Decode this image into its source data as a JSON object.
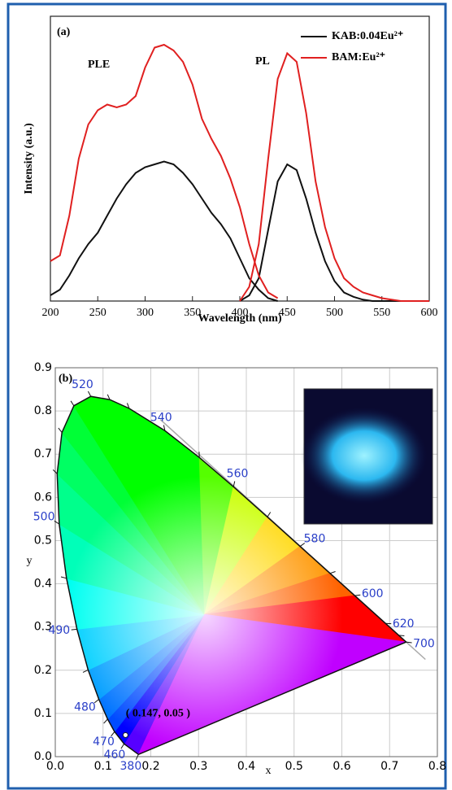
{
  "chart_data": [
    {
      "type": "line",
      "label": "(a)",
      "xlabel": "Wavelength (nm)",
      "ylabel": "Intensity (a.u.)",
      "xlim": [
        200,
        600
      ],
      "xticks": [
        200,
        250,
        300,
        350,
        400,
        450,
        500,
        550,
        600
      ],
      "ylim": [
        0,
        1
      ],
      "annotations": [
        "PLE",
        "PL"
      ],
      "legend": "upper right",
      "series": [
        {
          "name": "KAB:0.04Eu²⁺",
          "color": "#111111",
          "x": [
            200,
            210,
            220,
            230,
            240,
            250,
            260,
            270,
            280,
            290,
            300,
            310,
            320,
            330,
            340,
            350,
            360,
            370,
            380,
            390,
            400,
            410,
            420,
            430,
            440
          ],
          "values": [
            0.02,
            0.04,
            0.09,
            0.15,
            0.2,
            0.24,
            0.3,
            0.36,
            0.41,
            0.45,
            0.47,
            0.48,
            0.49,
            0.48,
            0.45,
            0.41,
            0.36,
            0.31,
            0.27,
            0.22,
            0.15,
            0.08,
            0.04,
            0.01,
            0
          ]
        },
        {
          "color": "#111111",
          "x": [
            400,
            410,
            420,
            430,
            440,
            450,
            460,
            470,
            480,
            490,
            500,
            510,
            520,
            530,
            540,
            550,
            560,
            570,
            580,
            590,
            600
          ],
          "values": [
            0,
            0.02,
            0.08,
            0.25,
            0.42,
            0.48,
            0.46,
            0.36,
            0.24,
            0.14,
            0.07,
            0.03,
            0.015,
            0.005,
            0,
            0,
            0,
            0,
            0,
            0,
            0
          ]
        },
        {
          "name": "BAM:Eu²⁺",
          "color": "#e02020",
          "x": [
            200,
            210,
            220,
            230,
            240,
            250,
            260,
            270,
            280,
            290,
            300,
            310,
            320,
            330,
            340,
            350,
            360,
            370,
            380,
            390,
            400,
            410,
            420,
            430,
            440
          ],
          "values": [
            0.14,
            0.16,
            0.3,
            0.5,
            0.62,
            0.67,
            0.69,
            0.68,
            0.69,
            0.72,
            0.82,
            0.89,
            0.9,
            0.88,
            0.84,
            0.76,
            0.64,
            0.57,
            0.51,
            0.43,
            0.33,
            0.2,
            0.09,
            0.03,
            0.01
          ]
        },
        {
          "color": "#e02020",
          "x": [
            400,
            410,
            420,
            430,
            440,
            450,
            460,
            470,
            480,
            490,
            500,
            510,
            520,
            530,
            540,
            550,
            560,
            570,
            580,
            590,
            600
          ],
          "values": [
            0,
            0.05,
            0.2,
            0.5,
            0.78,
            0.87,
            0.84,
            0.66,
            0.42,
            0.26,
            0.15,
            0.08,
            0.05,
            0.03,
            0.02,
            0.01,
            0.005,
            0,
            0,
            0,
            0
          ]
        }
      ]
    },
    {
      "type": "cie",
      "label": "(b)",
      "xlabel": "x",
      "ylabel": "y",
      "grid": true,
      "xlim": [
        0,
        0.8
      ],
      "ylim": [
        0,
        0.9
      ],
      "xticks": [
        {
          "value": 0,
          "label": "0.0"
        },
        {
          "value": 0.1,
          "label": "0.1"
        },
        {
          "value": 0.2,
          "label": "0.2"
        },
        {
          "value": 0.3,
          "label": "0.3"
        },
        {
          "value": 0.4,
          "label": "0.4"
        },
        {
          "value": 0.5,
          "label": "0.5"
        },
        {
          "value": 0.6,
          "label": "0.6"
        },
        {
          "value": 0.7,
          "label": "0.7"
        },
        {
          "value": 0.8,
          "label": "0.8"
        }
      ],
      "yticks": [
        {
          "value": 0,
          "label": "0.0"
        },
        {
          "value": 0.1,
          "label": "0.1"
        },
        {
          "value": 0.2,
          "label": "0.2"
        },
        {
          "value": 0.3,
          "label": "0.3"
        },
        {
          "value": 0.4,
          "label": "0.4"
        },
        {
          "value": 0.5,
          "label": "0.5"
        },
        {
          "value": 0.6,
          "label": "0.6"
        },
        {
          "value": 0.7,
          "label": "0.7"
        },
        {
          "value": 0.8,
          "label": "0.8"
        },
        {
          "value": 0.9,
          "label": "0.9"
        }
      ],
      "locus": {
        "labels": [
          "380",
          "460",
          "470",
          null,
          "480",
          null,
          "490",
          null,
          "500",
          null,
          null,
          null,
          "520",
          null,
          null,
          "540",
          null,
          "560",
          null,
          "580",
          null,
          "600",
          "620",
          null,
          "700"
        ],
        "x": [
          0.1741,
          0.144,
          0.1241,
          0.1096,
          0.0913,
          0.0687,
          0.0454,
          0.0235,
          0.0082,
          0.0039,
          0.0139,
          0.0389,
          0.0743,
          0.1142,
          0.1547,
          0.2296,
          0.3016,
          0.3731,
          0.4441,
          0.5125,
          0.5752,
          0.627,
          0.6915,
          0.719,
          0.7347
        ],
        "y": [
          0.005,
          0.0297,
          0.0578,
          0.0868,
          0.1327,
          0.2007,
          0.295,
          0.4127,
          0.5384,
          0.6548,
          0.7502,
          0.812,
          0.8338,
          0.8262,
          0.8059,
          0.7543,
          0.6923,
          0.6245,
          0.5547,
          0.4866,
          0.4242,
          0.3725,
          0.3083,
          0.2809,
          0.2653
        ]
      },
      "points": {
        "x": [
          0.147
        ],
        "y": [
          0.05
        ],
        "labels": [
          "( 0.147, 0.05 )"
        ]
      }
    }
  ]
}
